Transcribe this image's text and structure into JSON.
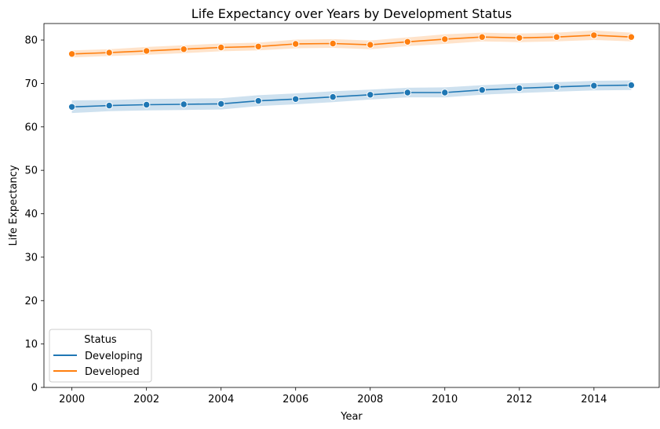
{
  "chart_data": {
    "type": "line",
    "title": "Life Expectancy over Years by Development Status",
    "xlabel": "Year",
    "ylabel": "Life Expectancy",
    "x": [
      2000,
      2001,
      2002,
      2003,
      2004,
      2005,
      2006,
      2007,
      2008,
      2009,
      2010,
      2011,
      2012,
      2013,
      2014,
      2015
    ],
    "xlim": [
      1999.25,
      2015.75
    ],
    "ylim": [
      0,
      83.8
    ],
    "xticks": [
      "2000",
      "2002",
      "2004",
      "2006",
      "2008",
      "2010",
      "2012",
      "2014"
    ],
    "yticks": [
      "0",
      "10",
      "20",
      "30",
      "40",
      "50",
      "60",
      "70",
      "80"
    ],
    "grid": false,
    "legend": {
      "title": "Status",
      "placement": "lower-left"
    },
    "series": [
      {
        "name": "Developing",
        "color": "#1f77b4",
        "values": [
          64.6,
          64.9,
          65.1,
          65.2,
          65.3,
          66.0,
          66.4,
          66.9,
          67.4,
          67.9,
          67.9,
          68.5,
          68.9,
          69.2,
          69.5,
          69.6
        ],
        "ci_low": [
          63.2,
          63.6,
          63.8,
          63.9,
          64.0,
          64.8,
          65.2,
          65.7,
          66.3,
          66.8,
          66.8,
          67.4,
          67.8,
          68.1,
          68.4,
          68.5
        ],
        "ci_high": [
          66.1,
          66.2,
          66.4,
          66.5,
          66.6,
          67.3,
          67.7,
          68.2,
          68.6,
          69.0,
          69.1,
          69.6,
          70.0,
          70.3,
          70.6,
          70.7
        ]
      },
      {
        "name": "Developed",
        "color": "#ff7f0e",
        "values": [
          76.8,
          77.1,
          77.5,
          77.9,
          78.3,
          78.5,
          79.1,
          79.2,
          78.9,
          79.6,
          80.2,
          80.7,
          80.5,
          80.7,
          81.1,
          80.7
        ],
        "ci_low": [
          76.0,
          76.3,
          76.6,
          77.0,
          77.4,
          77.6,
          78.1,
          78.2,
          77.9,
          78.6,
          79.1,
          79.7,
          79.5,
          79.7,
          80.0,
          79.7
        ],
        "ci_high": [
          77.6,
          77.9,
          78.4,
          78.8,
          79.2,
          79.4,
          80.1,
          80.2,
          79.9,
          80.6,
          81.3,
          81.7,
          81.5,
          81.7,
          82.2,
          81.7
        ]
      }
    ]
  }
}
